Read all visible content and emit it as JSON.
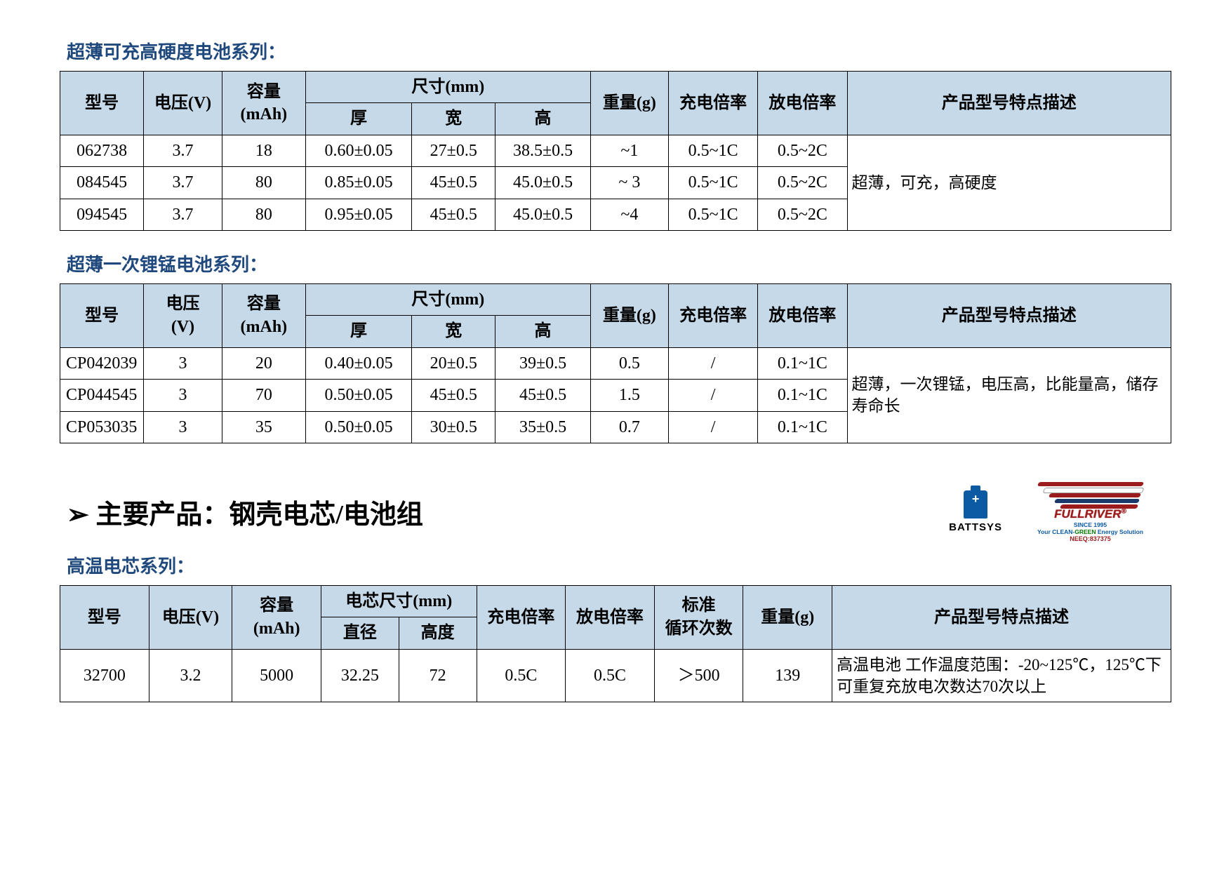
{
  "section1": {
    "title": "超薄可充高硬度电池系列：",
    "headers": {
      "model": "型号",
      "voltage": "电压(V)",
      "capacity": "容量",
      "capacity2": "(mAh)",
      "size": "尺寸(mm)",
      "thick": "厚",
      "width": "宽",
      "height": "高",
      "weight": "重量(g)",
      "charge": "充电倍率",
      "discharge": "放电倍率",
      "desc": "产品型号特点描述"
    },
    "desc": "超薄，可充，高硬度",
    "rows": [
      {
        "model": "062738",
        "v": "3.7",
        "cap": "18",
        "t": "0.60±0.05",
        "w": "27±0.5",
        "h": "38.5±0.5",
        "wt": "~1",
        "cr": "0.5~1C",
        "dr": "0.5~2C"
      },
      {
        "model": "084545",
        "v": "3.7",
        "cap": "80",
        "t": "0.85±0.05",
        "w": "45±0.5",
        "h": "45.0±0.5",
        "wt": "~ 3",
        "cr": "0.5~1C",
        "dr": "0.5~2C"
      },
      {
        "model": "094545",
        "v": "3.7",
        "cap": "80",
        "t": "0.95±0.05",
        "w": "45±0.5",
        "h": "45.0±0.5",
        "wt": "~4",
        "cr": "0.5~1C",
        "dr": "0.5~2C"
      }
    ]
  },
  "section2": {
    "title": "超薄一次锂锰电池系列：",
    "headers": {
      "model": "型号",
      "voltage": "电压",
      "voltage2": "(V)",
      "capacity": "容量",
      "capacity2": "(mAh)",
      "size": "尺寸(mm)",
      "thick": "厚",
      "width": "宽",
      "height": "高",
      "weight": "重量(g)",
      "charge": "充电倍率",
      "discharge": "放电倍率",
      "desc": "产品型号特点描述"
    },
    "desc": "超薄，一次锂锰，电压高，比能量高，储存寿命长",
    "rows": [
      {
        "model": "CP042039",
        "v": "3",
        "cap": "20",
        "t": "0.40±0.05",
        "w": "20±0.5",
        "h": "39±0.5",
        "wt": "0.5",
        "cr": "/",
        "dr": "0.1~1C"
      },
      {
        "model": "CP044545",
        "v": "3",
        "cap": "70",
        "t": "0.50±0.05",
        "w": "45±0.5",
        "h": "45±0.5",
        "wt": "1.5",
        "cr": "/",
        "dr": "0.1~1C"
      },
      {
        "model": "CP053035",
        "v": "3",
        "cap": "35",
        "t": "0.50±0.05",
        "w": "30±0.5",
        "h": "35±0.5",
        "wt": "0.7",
        "cr": "/",
        "dr": "0.1~1C"
      }
    ]
  },
  "mainHeading": "➢ 主要产品：钢壳电芯/电池组",
  "logos": {
    "battsys": "BATTSYS",
    "fullriver_brand": "FULLRIVER",
    "fullriver_sub1_a": "SINCE 1995",
    "fullriver_sub1_b": "Your CLEAN-",
    "fullriver_sub1_c": "GREEN",
    "fullriver_sub1_d": " Energy Solution",
    "fullriver_sub2": "NEEQ:837375"
  },
  "section3": {
    "title": "高温电芯系列：",
    "headers": {
      "model": "型号",
      "voltage": "电压(V)",
      "capacity": "容量",
      "capacity2": "(mAh)",
      "cellsize": "电芯尺寸(mm)",
      "diameter": "直径",
      "height": "高度",
      "charge": "充电倍率",
      "discharge": "放电倍率",
      "cycle": "标准",
      "cycle2": "循环次数",
      "weight": "重量(g)",
      "desc": "产品型号特点描述"
    },
    "rows": [
      {
        "model": "32700",
        "v": "3.2",
        "cap": "5000",
        "dia": "32.25",
        "h": "72",
        "cr": "0.5C",
        "dr": "0.5C",
        "cycle": "＞500",
        "wt": "139",
        "desc": "高温电池 工作温度范围：-20~125℃，125℃下可重复充放电次数达70次以上"
      }
    ]
  },
  "colors": {
    "header_bg": "#c5d9e8",
    "title_color": "#1f497d",
    "border": "#000000",
    "text": "#000000"
  }
}
